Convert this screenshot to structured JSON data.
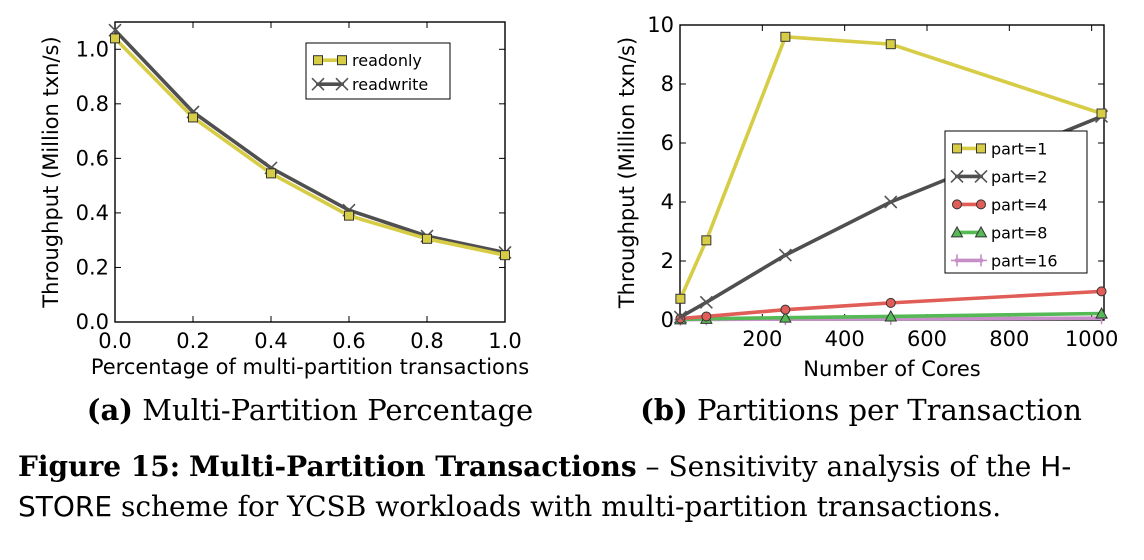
{
  "chart_data": [
    {
      "type": "line",
      "xlabel": "Percentage of multi-partition transactions",
      "ylabel": "Throughput (Million txn/s)",
      "xlim": [
        0.0,
        1.0
      ],
      "ylim": [
        0.0,
        1.1
      ],
      "xticks": [
        "0.0",
        "0.2",
        "0.4",
        "0.6",
        "0.8",
        "1.0"
      ],
      "yticks": [
        "0.0",
        "0.2",
        "0.4",
        "0.6",
        "0.8",
        "1.0"
      ],
      "legend_position": "top-right",
      "x": [
        0.0,
        0.2,
        0.4,
        0.6,
        0.8,
        1.0
      ],
      "series": [
        {
          "name": "readonly",
          "values": [
            1.04,
            0.75,
            0.545,
            0.39,
            0.305,
            0.245
          ],
          "color": "#d7cc46",
          "marker": "square"
        },
        {
          "name": "readwrite",
          "values": [
            1.07,
            0.77,
            0.565,
            0.41,
            0.315,
            0.255
          ],
          "color": "#4f4f4f",
          "marker": "x"
        }
      ],
      "caption_label": "(a)",
      "caption_text": "Multi-Partition Percentage"
    },
    {
      "type": "line",
      "xlabel": "Number of Cores",
      "ylabel": "Throughput (Million txn/s)",
      "xlim": [
        0,
        1030
      ],
      "ylim": [
        0,
        10
      ],
      "xticks": [
        "200",
        "400",
        "600",
        "800",
        "1000"
      ],
      "yticks": [
        "0",
        "2",
        "4",
        "6",
        "8",
        "10"
      ],
      "legend_position": "center-right",
      "x": [
        1,
        64,
        256,
        512,
        1024
      ],
      "series": [
        {
          "name": "part=1",
          "values": [
            0.72,
            2.7,
            9.6,
            9.35,
            7.0
          ],
          "color": "#d7cc46",
          "marker": "square"
        },
        {
          "name": "part=2",
          "values": [
            0.1,
            0.6,
            2.2,
            4.0,
            6.9
          ],
          "color": "#4f4f4f",
          "marker": "x"
        },
        {
          "name": "part=4",
          "values": [
            0.05,
            0.12,
            0.35,
            0.58,
            0.97
          ],
          "color": "#e15d57",
          "marker": "circle"
        },
        {
          "name": "part=8",
          "values": [
            0.02,
            0.04,
            0.08,
            0.12,
            0.22
          ],
          "color": "#55b956",
          "marker": "triangle"
        },
        {
          "name": "part=16",
          "values": [
            0.01,
            0.02,
            0.03,
            0.04,
            0.06
          ],
          "color": "#c88ec8",
          "marker": "plus"
        }
      ],
      "caption_label": "(b)",
      "caption_text": "Partitions per Transaction"
    }
  ],
  "caption": {
    "label": "Figure 15:",
    "title": "Multi-Partition Transactions",
    "dash": " – ",
    "text1": "Sensitivity analysis of the ",
    "sans1": "H-",
    "sans2": "STORE",
    "text2": " scheme for YCSB workloads with multi-partition transactions."
  }
}
